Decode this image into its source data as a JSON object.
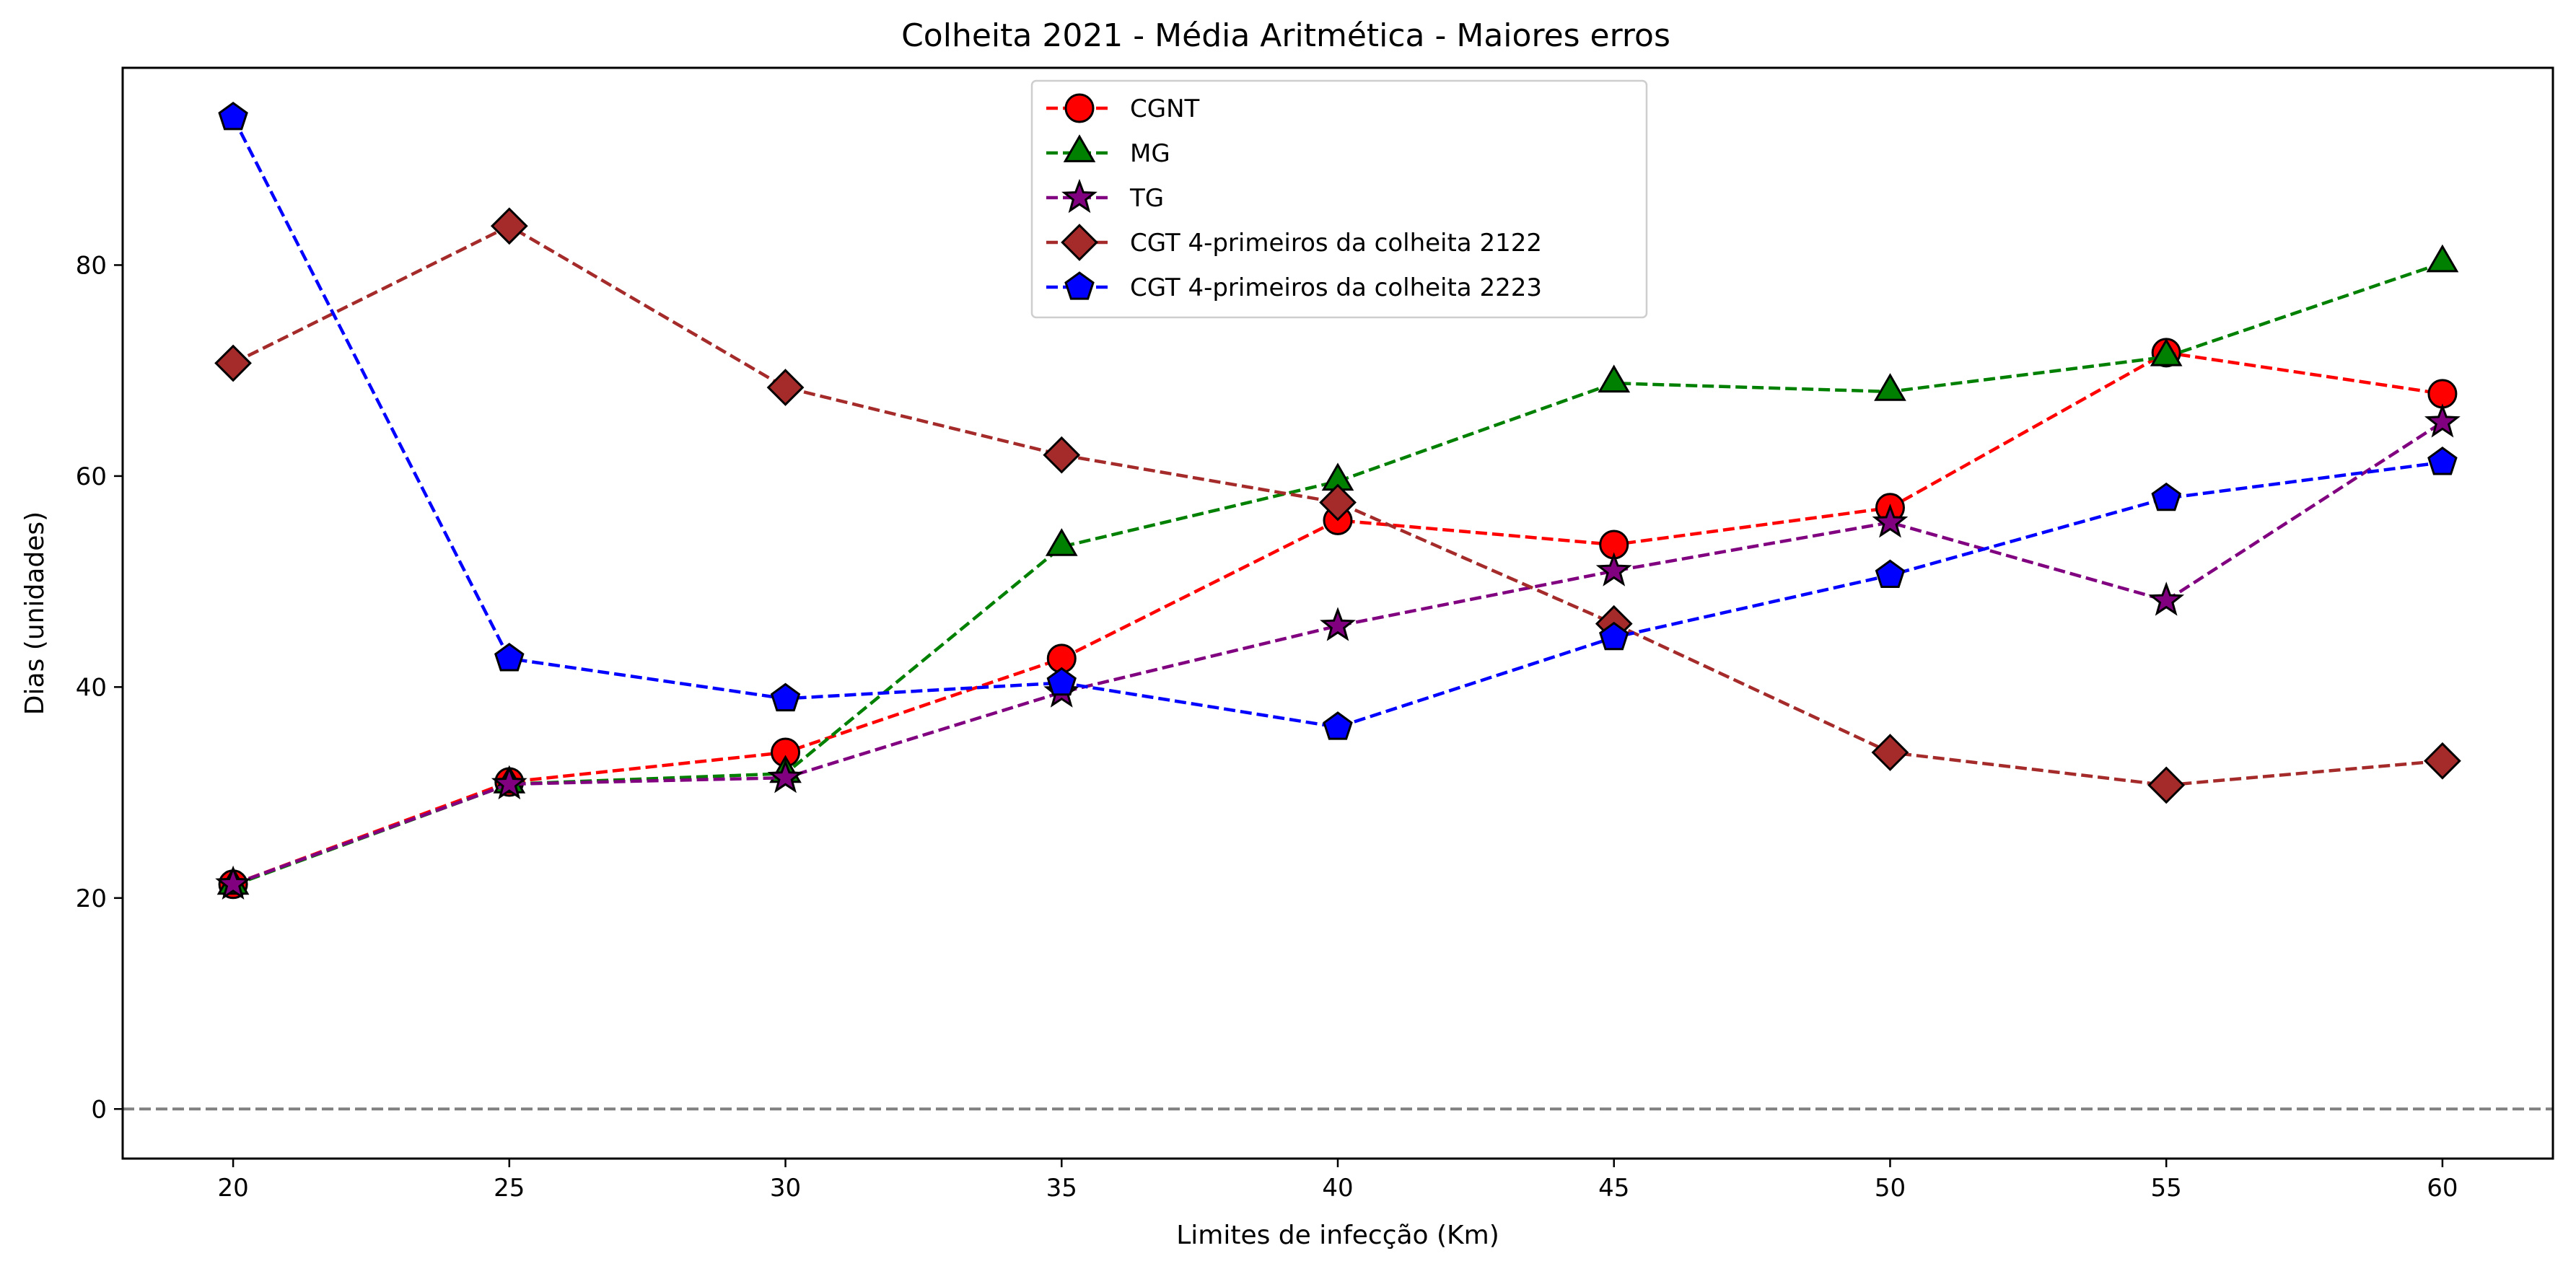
{
  "chart_data": {
    "type": "line",
    "title": "Colheita 2021 - Média Aritmética - Maiores erros",
    "xlabel": "Limites de infecção (Km)",
    "ylabel": "Dias (unidades)",
    "x": [
      20,
      25,
      30,
      35,
      40,
      45,
      50,
      55,
      60
    ],
    "xlim": [
      18,
      62
    ],
    "ylim": [
      -4.7,
      98.7
    ],
    "xticks": [
      "20",
      "25",
      "30",
      "35",
      "40",
      "45",
      "50",
      "55",
      "60"
    ],
    "yticks": [
      "0",
      "20",
      "40",
      "60",
      "80"
    ],
    "reference_line": {
      "y": 0,
      "style": "dashed",
      "color": "#808080"
    },
    "grid": false,
    "legend_position": "top-center",
    "series": [
      {
        "name": "CGNT",
        "color": "#ff0000",
        "marker": "circle",
        "values": [
          21.3,
          31.0,
          33.8,
          42.7,
          55.8,
          53.5,
          57.0,
          71.7,
          67.8
        ]
      },
      {
        "name": "MG",
        "color": "#008000",
        "marker": "triangle",
        "values": [
          21.2,
          30.8,
          31.8,
          53.3,
          59.5,
          68.8,
          68.0,
          71.3,
          80.2
        ]
      },
      {
        "name": "TG",
        "color": "#800080",
        "marker": "star",
        "values": [
          21.3,
          30.8,
          31.4,
          39.5,
          45.8,
          51.0,
          55.6,
          48.2,
          65.1
        ]
      },
      {
        "name": "CGT 4-primeiros da colheita 2122",
        "color": "#a52a2a",
        "marker": "diamond",
        "values": [
          70.7,
          83.7,
          68.4,
          62.0,
          57.5,
          46.0,
          33.8,
          30.7,
          33.0
        ]
      },
      {
        "name": "CGT 4-primeiros da colheita 2223",
        "color": "#0000ff",
        "marker": "pentagon",
        "values": [
          94.0,
          42.7,
          38.9,
          40.4,
          36.2,
          44.7,
          50.6,
          57.9,
          61.3
        ]
      }
    ]
  }
}
